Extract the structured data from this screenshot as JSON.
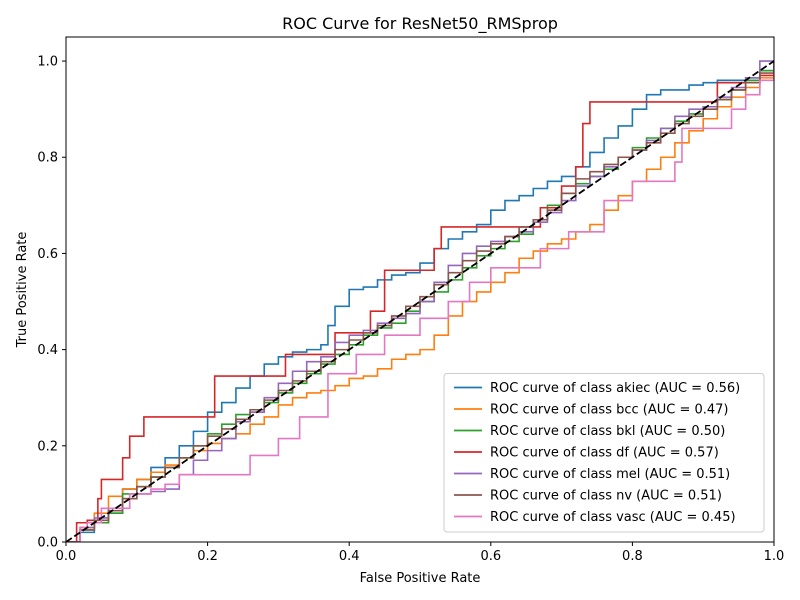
{
  "chart_data": {
    "type": "line",
    "title": "ROC Curve for ResNet50_RMSprop",
    "xlabel": "False Positive Rate",
    "ylabel": "True Positive Rate",
    "xlim": [
      0.0,
      1.0
    ],
    "ylim": [
      0.0,
      1.05
    ],
    "xticks": [
      0.0,
      0.2,
      0.4,
      0.6,
      0.8,
      1.0
    ],
    "yticks": [
      0.0,
      0.2,
      0.4,
      0.6,
      0.8,
      1.0
    ],
    "xtick_labels": [
      "0.0",
      "0.2",
      "0.4",
      "0.6",
      "0.8",
      "1.0"
    ],
    "ytick_labels": [
      "0.0",
      "0.2",
      "0.4",
      "0.6",
      "0.8",
      "1.0"
    ],
    "grid": false,
    "legend_position": "lower-right",
    "diagonal": {
      "x": [
        0,
        1
      ],
      "y": [
        0,
        1
      ],
      "color": "#000000",
      "style": "dashed"
    },
    "series": [
      {
        "name": "ROC curve of class akiec (AUC = 0.56)",
        "color": "#1f77b4",
        "x": [
          0.0,
          0.02,
          0.04,
          0.06,
          0.08,
          0.1,
          0.12,
          0.14,
          0.16,
          0.18,
          0.2,
          0.22,
          0.24,
          0.26,
          0.28,
          0.3,
          0.32,
          0.34,
          0.36,
          0.37,
          0.38,
          0.4,
          0.42,
          0.44,
          0.46,
          0.48,
          0.5,
          0.52,
          0.54,
          0.56,
          0.58,
          0.6,
          0.62,
          0.64,
          0.66,
          0.68,
          0.7,
          0.72,
          0.74,
          0.76,
          0.78,
          0.8,
          0.82,
          0.84,
          0.86,
          0.88,
          0.9,
          0.92,
          0.94,
          0.96,
          0.98,
          1.0
        ],
        "y": [
          0.0,
          0.02,
          0.04,
          0.06,
          0.11,
          0.13,
          0.155,
          0.175,
          0.2,
          0.23,
          0.27,
          0.29,
          0.32,
          0.345,
          0.37,
          0.385,
          0.395,
          0.4,
          0.41,
          0.45,
          0.49,
          0.525,
          0.53,
          0.545,
          0.555,
          0.56,
          0.58,
          0.61,
          0.63,
          0.645,
          0.66,
          0.69,
          0.71,
          0.72,
          0.735,
          0.75,
          0.76,
          0.78,
          0.81,
          0.84,
          0.865,
          0.9,
          0.93,
          0.94,
          0.94,
          0.95,
          0.955,
          0.96,
          0.96,
          0.965,
          0.98,
          1.0
        ]
      },
      {
        "name": "ROC curve of class bcc (AUC = 0.47)",
        "color": "#ff7f0e",
        "x": [
          0.0,
          0.02,
          0.04,
          0.06,
          0.08,
          0.1,
          0.12,
          0.14,
          0.16,
          0.18,
          0.2,
          0.22,
          0.24,
          0.26,
          0.28,
          0.3,
          0.32,
          0.34,
          0.36,
          0.38,
          0.4,
          0.42,
          0.44,
          0.46,
          0.48,
          0.5,
          0.52,
          0.54,
          0.56,
          0.58,
          0.6,
          0.62,
          0.64,
          0.66,
          0.68,
          0.7,
          0.72,
          0.74,
          0.76,
          0.78,
          0.8,
          0.82,
          0.84,
          0.86,
          0.88,
          0.9,
          0.92,
          0.94,
          0.96,
          0.98,
          1.0
        ],
        "y": [
          0.0,
          0.03,
          0.06,
          0.095,
          0.11,
          0.13,
          0.145,
          0.16,
          0.175,
          0.19,
          0.205,
          0.215,
          0.225,
          0.245,
          0.26,
          0.285,
          0.3,
          0.31,
          0.315,
          0.325,
          0.34,
          0.345,
          0.36,
          0.38,
          0.39,
          0.4,
          0.43,
          0.47,
          0.5,
          0.52,
          0.54,
          0.56,
          0.59,
          0.605,
          0.62,
          0.63,
          0.645,
          0.66,
          0.69,
          0.72,
          0.75,
          0.775,
          0.8,
          0.83,
          0.855,
          0.88,
          0.905,
          0.925,
          0.945,
          0.965,
          1.0
        ]
      },
      {
        "name": "ROC curve of class bkl (AUC = 0.50)",
        "color": "#2ca02c",
        "x": [
          0.0,
          0.02,
          0.04,
          0.06,
          0.08,
          0.1,
          0.12,
          0.14,
          0.16,
          0.18,
          0.2,
          0.22,
          0.24,
          0.26,
          0.28,
          0.3,
          0.32,
          0.34,
          0.36,
          0.38,
          0.4,
          0.42,
          0.44,
          0.46,
          0.48,
          0.5,
          0.52,
          0.54,
          0.56,
          0.58,
          0.6,
          0.62,
          0.64,
          0.66,
          0.68,
          0.7,
          0.72,
          0.74,
          0.76,
          0.78,
          0.8,
          0.82,
          0.84,
          0.86,
          0.88,
          0.9,
          0.92,
          0.94,
          0.96,
          0.98,
          1.0
        ],
        "y": [
          0.0,
          0.025,
          0.04,
          0.06,
          0.1,
          0.115,
          0.135,
          0.155,
          0.175,
          0.2,
          0.225,
          0.245,
          0.265,
          0.27,
          0.29,
          0.31,
          0.33,
          0.35,
          0.37,
          0.39,
          0.41,
          0.43,
          0.445,
          0.455,
          0.48,
          0.5,
          0.52,
          0.545,
          0.57,
          0.595,
          0.61,
          0.625,
          0.64,
          0.67,
          0.7,
          0.725,
          0.745,
          0.76,
          0.775,
          0.8,
          0.82,
          0.84,
          0.86,
          0.875,
          0.89,
          0.905,
          0.92,
          0.94,
          0.96,
          0.98,
          1.0
        ]
      },
      {
        "name": "ROC curve of class df (AUC = 0.57)",
        "color": "#d62728",
        "x": [
          0.0,
          0.015,
          0.03,
          0.045,
          0.05,
          0.07,
          0.08,
          0.09,
          0.11,
          0.2,
          0.21,
          0.27,
          0.31,
          0.36,
          0.38,
          0.42,
          0.43,
          0.45,
          0.51,
          0.52,
          0.53,
          0.66,
          0.67,
          0.7,
          0.72,
          0.73,
          0.74,
          0.9,
          0.92,
          0.96,
          0.98,
          1.0
        ],
        "y": [
          0.0,
          0.04,
          0.045,
          0.09,
          0.13,
          0.13,
          0.175,
          0.22,
          0.26,
          0.26,
          0.345,
          0.345,
          0.39,
          0.39,
          0.435,
          0.435,
          0.48,
          0.565,
          0.565,
          0.61,
          0.655,
          0.655,
          0.695,
          0.74,
          0.78,
          0.87,
          0.915,
          0.915,
          0.955,
          0.955,
          0.97,
          1.0
        ]
      },
      {
        "name": "ROC curve of class mel (AUC = 0.51)",
        "color": "#9467bd",
        "x": [
          0.0,
          0.02,
          0.04,
          0.06,
          0.08,
          0.1,
          0.12,
          0.14,
          0.16,
          0.18,
          0.2,
          0.22,
          0.24,
          0.26,
          0.28,
          0.3,
          0.32,
          0.34,
          0.36,
          0.38,
          0.4,
          0.42,
          0.44,
          0.46,
          0.48,
          0.5,
          0.52,
          0.54,
          0.56,
          0.58,
          0.6,
          0.62,
          0.64,
          0.66,
          0.68,
          0.7,
          0.72,
          0.74,
          0.76,
          0.78,
          0.8,
          0.82,
          0.84,
          0.86,
          0.88,
          0.9,
          0.92,
          0.94,
          0.96,
          0.98,
          1.0
        ],
        "y": [
          0.0,
          0.03,
          0.05,
          0.07,
          0.09,
          0.1,
          0.105,
          0.11,
          0.14,
          0.17,
          0.19,
          0.215,
          0.25,
          0.27,
          0.3,
          0.33,
          0.355,
          0.375,
          0.385,
          0.415,
          0.43,
          0.44,
          0.455,
          0.465,
          0.475,
          0.5,
          0.54,
          0.575,
          0.6,
          0.615,
          0.625,
          0.635,
          0.645,
          0.665,
          0.685,
          0.71,
          0.74,
          0.76,
          0.78,
          0.8,
          0.815,
          0.835,
          0.86,
          0.885,
          0.9,
          0.905,
          0.925,
          0.945,
          0.965,
          1.0,
          1.0
        ]
      },
      {
        "name": "ROC curve of class nv (AUC = 0.51)",
        "color": "#8c564b",
        "x": [
          0.0,
          0.02,
          0.04,
          0.06,
          0.08,
          0.1,
          0.12,
          0.14,
          0.16,
          0.18,
          0.2,
          0.22,
          0.24,
          0.26,
          0.28,
          0.3,
          0.32,
          0.34,
          0.36,
          0.38,
          0.4,
          0.42,
          0.44,
          0.46,
          0.48,
          0.5,
          0.52,
          0.54,
          0.56,
          0.58,
          0.6,
          0.62,
          0.64,
          0.66,
          0.68,
          0.7,
          0.72,
          0.74,
          0.76,
          0.78,
          0.8,
          0.82,
          0.84,
          0.86,
          0.88,
          0.9,
          0.92,
          0.94,
          0.96,
          0.98,
          1.0
        ],
        "y": [
          0.0,
          0.025,
          0.045,
          0.065,
          0.09,
          0.115,
          0.135,
          0.155,
          0.175,
          0.2,
          0.22,
          0.235,
          0.255,
          0.275,
          0.295,
          0.315,
          0.335,
          0.355,
          0.375,
          0.4,
          0.42,
          0.435,
          0.45,
          0.47,
          0.49,
          0.51,
          0.535,
          0.56,
          0.585,
          0.605,
          0.62,
          0.635,
          0.655,
          0.67,
          0.69,
          0.725,
          0.755,
          0.77,
          0.785,
          0.8,
          0.815,
          0.83,
          0.85,
          0.87,
          0.885,
          0.9,
          0.92,
          0.94,
          0.955,
          0.975,
          1.0
        ]
      },
      {
        "name": "ROC curve of class vasc (AUC = 0.45)",
        "color": "#e377c2",
        "x": [
          0.0,
          0.02,
          0.03,
          0.05,
          0.07,
          0.09,
          0.1,
          0.12,
          0.14,
          0.16,
          0.24,
          0.26,
          0.3,
          0.33,
          0.37,
          0.41,
          0.45,
          0.5,
          0.54,
          0.57,
          0.6,
          0.64,
          0.67,
          0.71,
          0.76,
          0.8,
          0.83,
          0.86,
          0.87,
          0.93,
          0.94,
          0.96,
          0.98,
          1.0
        ],
        "y": [
          0.0,
          0.03,
          0.04,
          0.07,
          0.07,
          0.1,
          0.1,
          0.11,
          0.12,
          0.14,
          0.14,
          0.18,
          0.215,
          0.26,
          0.35,
          0.39,
          0.43,
          0.465,
          0.5,
          0.54,
          0.57,
          0.57,
          0.61,
          0.645,
          0.71,
          0.75,
          0.75,
          0.79,
          0.86,
          0.86,
          0.9,
          0.93,
          0.96,
          1.0
        ]
      }
    ]
  }
}
